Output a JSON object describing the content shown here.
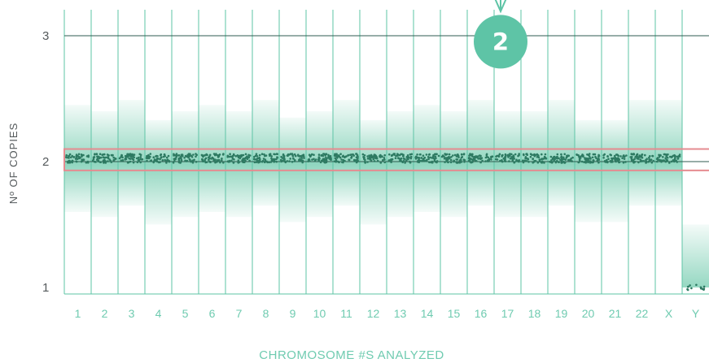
{
  "chart_data": {
    "type": "scatter",
    "title": "",
    "xlabel": "CHROMOSOME #S ANALYZED",
    "ylabel": "Nº OF COPIES",
    "y_ticks": [
      "1",
      "2",
      "3"
    ],
    "ylim": [
      1,
      3.1
    ],
    "categories": [
      "1",
      "2",
      "3",
      "4",
      "5",
      "6",
      "7",
      "8",
      "9",
      "10",
      "11",
      "12",
      "13",
      "14",
      "15",
      "16",
      "17",
      "18",
      "19",
      "20",
      "21",
      "22",
      "X",
      "Y"
    ],
    "copy_number": [
      2,
      2,
      2,
      2,
      2,
      2,
      2,
      2,
      2,
      2,
      2,
      2,
      2,
      2,
      2,
      2,
      2,
      2,
      2,
      2,
      2,
      2,
      2,
      1
    ],
    "band_top": [
      2.45,
      2.4,
      2.49,
      2.33,
      2.4,
      2.45,
      2.4,
      2.49,
      2.35,
      2.4,
      2.49,
      2.33,
      2.4,
      2.45,
      2.4,
      2.49,
      2.4,
      2.4,
      2.49,
      2.33,
      2.33,
      2.49,
      2.49,
      1.5
    ],
    "band_bottom": [
      1.6,
      1.56,
      1.65,
      1.5,
      1.56,
      1.6,
      1.56,
      1.65,
      1.52,
      1.56,
      1.65,
      1.5,
      1.56,
      1.6,
      1.56,
      1.65,
      1.56,
      1.56,
      1.65,
      1.52,
      1.52,
      1.65,
      1.65,
      1.0
    ],
    "highlight": {
      "y_from": 1.93,
      "y_to": 2.1
    },
    "badge": {
      "label": "2",
      "category": "17",
      "y": 3.03
    },
    "grid": true,
    "colors": {
      "accent": "#5ec4a6",
      "points": "#2e7a62",
      "highlight": "#e58b90",
      "band": "#3fb890",
      "gridline": "#2f5b50"
    }
  }
}
